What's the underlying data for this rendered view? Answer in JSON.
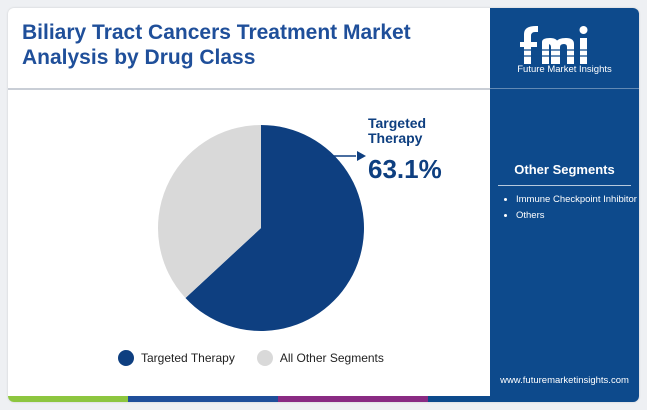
{
  "header": {
    "title": "Biliary Tract Cancers Treatment Market Analysis by Drug Class"
  },
  "brand": {
    "logo_icon": "fmi-logo-icon",
    "name": "Future Market Insights",
    "website": "www.futuremarketinsights.com"
  },
  "sidebar": {
    "title": "Other Segments",
    "items": [
      "Immune Checkpoint Inhibitor",
      "Others"
    ]
  },
  "callout": {
    "label_line1": "Targeted",
    "label_line2": "Therapy",
    "value": "63.1%"
  },
  "colors": {
    "primary": "#0e3f80",
    "secondary": "#d9d9d9",
    "sidebar": "#0d4a8c",
    "title": "#1f4f9a"
  },
  "chart_data": {
    "type": "pie",
    "title": "Biliary Tract Cancers Treatment Market Analysis by Drug Class",
    "slices": [
      {
        "label": "Targeted Therapy",
        "value": 63.1,
        "color": "#0e3f80"
      },
      {
        "label": "All Other Segments",
        "value": 36.9,
        "color": "#d9d9d9"
      }
    ],
    "legend_position": "bottom",
    "annotations": [
      {
        "text": "Targeted Therapy 63.1%",
        "slice": "Targeted Therapy"
      }
    ]
  },
  "legend": {
    "items": [
      {
        "label": "Targeted Therapy",
        "color": "#0e3f80"
      },
      {
        "label": "All Other Segments",
        "color": "#d9d9d9"
      }
    ]
  },
  "bottom_bar": {
    "colors": [
      "#8dc63f",
      "#1f4f9a",
      "#8a2b83",
      "#0d4a8c"
    ]
  }
}
